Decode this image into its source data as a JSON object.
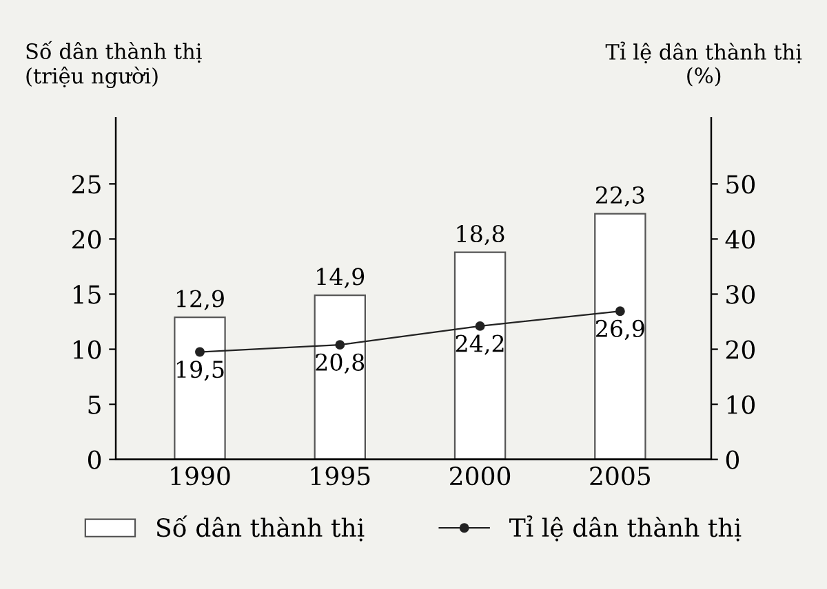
{
  "chart_data": {
    "type": "bar",
    "ylabel": "Số dân thành thị\n(triệu người)",
    "y2label": "Tỉ lệ dân thành thị\n(%)",
    "categories": [
      "1990",
      "1995",
      "2000",
      "2005"
    ],
    "series": [
      {
        "name": "Số dân thành thị",
        "color": "#ffffff",
        "values": [
          12.9,
          14.9,
          18.8,
          22.3
        ],
        "value_labels": [
          "12,9",
          "14,9",
          "18,8",
          "22,3"
        ]
      },
      {
        "name": "Tỉ lệ dân thành thị",
        "type": "line",
        "axis": "y2",
        "color": "#222222",
        "marker": "circle",
        "values": [
          19.5,
          20.8,
          24.2,
          26.9
        ],
        "value_labels": [
          "19,5",
          "20,8",
          "24,2",
          "26,9"
        ]
      }
    ],
    "ylim": [
      0,
      31
    ],
    "yticks": [
      0,
      5,
      10,
      15,
      20,
      25
    ],
    "y2lim": [
      0,
      62
    ],
    "y2ticks": [
      0,
      10,
      20,
      30,
      40,
      50
    ],
    "grid": false,
    "legend": "bottom"
  }
}
